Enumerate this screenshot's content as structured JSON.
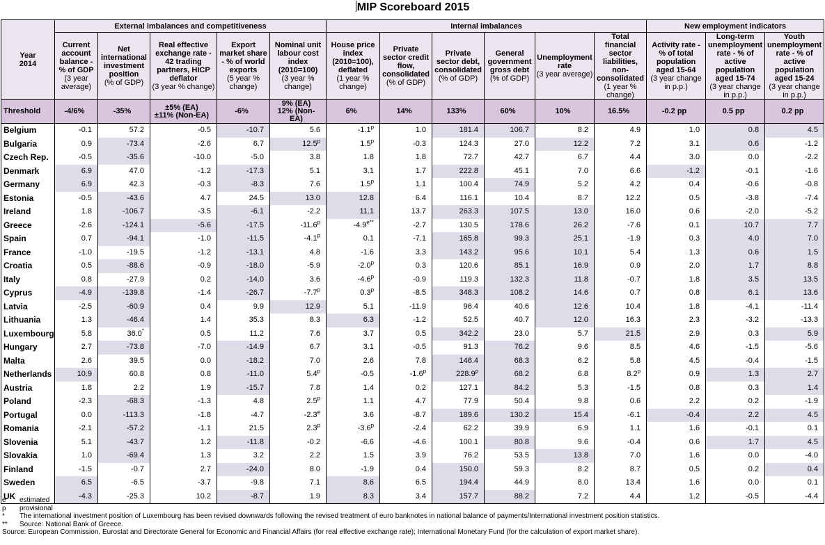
{
  "title": "MIP Scoreboard 2015",
  "year_label": "Year 2014",
  "groups": [
    "External imbalances and competitiveness",
    "Internal imbalances",
    "New employment indicators"
  ],
  "columns": [
    {
      "bold": "Current account balance - % of GDP",
      "normal": "(3 year average)"
    },
    {
      "bold": "Net international investment position",
      "normal": "(% of GDP)"
    },
    {
      "bold": "Real effective exchange rate - 42 trading partners, HICP deflator",
      "normal": "(3 year % change)"
    },
    {
      "bold": "Export market share - % of world exports",
      "normal": "(5 year % change)"
    },
    {
      "bold": "Nominal unit labour cost index (2010=100)",
      "normal": "(3 year % change)"
    },
    {
      "bold": "House price index (2010=100), deflated",
      "normal": "(1 year % change)"
    },
    {
      "bold": "Private sector credit flow, consolidated",
      "normal": "(% of GDP)"
    },
    {
      "bold": "Private sector debt, consolidated",
      "normal": "(% of GDP)"
    },
    {
      "bold": "General government gross debt",
      "normal": "(% of GDP)"
    },
    {
      "bold": "Unemployment rate",
      "normal": "(3 year average)"
    },
    {
      "bold": "Total financial sector liabilities, non-consolidated",
      "normal": "(1 year % change)"
    },
    {
      "bold": "Activity rate - % of total population aged 15-64",
      "normal": "(3 year change in p.p.)"
    },
    {
      "bold": "Long-term unemployment rate - % of active population aged 15-74",
      "normal": "(3 year change in p.p.)"
    },
    {
      "bold": "Youth unemployment rate - % of active population aged 15-24",
      "normal": "(3 year change in p.p.)"
    }
  ],
  "threshold_label": "Threshold",
  "thresholds": [
    "-4/6%",
    "-35%",
    "±5% (EA)\n±11% (Non-EA)",
    "-6%",
    "9% (EA)\n12% (Non-EA)",
    "6%",
    "14%",
    "133%",
    "60%",
    "10%",
    "16.5%",
    "-0.2 pp",
    "0.5 pp",
    "0.2 pp"
  ],
  "highlight_color": "#dfdbe9",
  "rows": [
    {
      "country": "Belgium",
      "values": [
        "-0.1",
        "57.2",
        "-0.5",
        "-10.7",
        "5.6",
        "-1.1^p",
        "1.0",
        "181.4",
        "106.7",
        "8.2",
        "4.9",
        "1.0",
        "0.8",
        "4.5"
      ],
      "flagged": [
        3,
        7,
        8,
        12,
        13
      ]
    },
    {
      "country": "Bulgaria",
      "values": [
        "0.9",
        "-73.4",
        "-2.6",
        "6.7",
        "12.5^p",
        "1.5^p",
        "-0.3",
        "124.3",
        "27.0",
        "12.2",
        "7.2",
        "3.1",
        "0.6",
        "-1.2"
      ],
      "flagged": [
        1,
        4,
        9,
        12
      ]
    },
    {
      "country": "Czech Rep.",
      "values": [
        "-0.5",
        "-35.6",
        "-10.0",
        "-5.0",
        "3.8",
        "1.8",
        "1.8",
        "72.7",
        "42.7",
        "6.7",
        "4.4",
        "3.0",
        "0.0",
        "-2.2"
      ],
      "flagged": [
        1
      ]
    },
    {
      "country": "Denmark",
      "values": [
        "6.9",
        "47.0",
        "-1.2",
        "-17.3",
        "5.1",
        "3.1",
        "1.7",
        "222.8",
        "45.1",
        "7.0",
        "6.6",
        "-1.2",
        "-0.1",
        "-1.6"
      ],
      "flagged": [
        0,
        3,
        7,
        11
      ]
    },
    {
      "country": "Germany",
      "values": [
        "6.9",
        "42.3",
        "-0.3",
        "-8.3",
        "7.6",
        "1.5^p",
        "1.1",
        "100.4",
        "74.9",
        "5.2",
        "4.2",
        "0.4",
        "-0.6",
        "-0.8"
      ],
      "flagged": [
        0,
        3,
        8
      ]
    },
    {
      "country": "Estonia",
      "values": [
        "-0.5",
        "-43.6",
        "4.7",
        "24.5",
        "13.0",
        "12.8",
        "6.4",
        "116.1",
        "10.4",
        "8.7",
        "12.2",
        "0.5",
        "-3.8",
        "-7.4"
      ],
      "flagged": [
        1,
        4,
        5
      ]
    },
    {
      "country": "Ireland",
      "values": [
        "1.8",
        "-106.7",
        "-3.5",
        "-6.1",
        "-2.2",
        "11.1",
        "13.7",
        "263.3",
        "107.5",
        "13.0",
        "16.0",
        "0.6",
        "-2.0",
        "-5.2"
      ],
      "flagged": [
        1,
        3,
        5,
        7,
        8,
        9
      ]
    },
    {
      "country": "Greece",
      "values": [
        "-2.6",
        "-124.1",
        "-5.6",
        "-17.5",
        "-11.6^p",
        "-4.9^e**",
        "-2.7",
        "130.5",
        "178.6",
        "26.2",
        "-7.6",
        "0.1",
        "10.7",
        "7.7"
      ],
      "flagged": [
        1,
        2,
        3,
        8,
        9,
        12,
        13
      ]
    },
    {
      "country": "Spain",
      "values": [
        "0.7",
        "-94.1",
        "-1.0",
        "-11.5",
        "-4.1^p",
        "0.1",
        "-7.1",
        "165.8",
        "99.3",
        "25.1",
        "-1.9",
        "0.3",
        "4.0",
        "7.0"
      ],
      "flagged": [
        1,
        3,
        7,
        8,
        9,
        12,
        13
      ]
    },
    {
      "country": "France",
      "values": [
        "-1.0",
        "-19.5",
        "-1.2",
        "-13.1",
        "4.8",
        "-1.6",
        "3.3",
        "143.2",
        "95.6",
        "10.1",
        "5.4",
        "1.3",
        "0.6",
        "1.5"
      ],
      "flagged": [
        3,
        7,
        8,
        9,
        12,
        13
      ]
    },
    {
      "country": "Croatia",
      "values": [
        "0.5",
        "-88.6",
        "-0.9",
        "-18.0",
        "-5.9",
        "-2.0^p",
        "0.3",
        "120.6",
        "85.1",
        "16.9",
        "0.9",
        "2.0",
        "1.7",
        "8.8"
      ],
      "flagged": [
        1,
        3,
        8,
        9,
        12,
        13
      ]
    },
    {
      "country": "Italy",
      "values": [
        "0.8",
        "-27.9",
        "0.2",
        "-14.0",
        "3.6",
        "-4.6^p",
        "-0.9",
        "119.3",
        "132.3",
        "11.8",
        "-0.7",
        "1.8",
        "3.5",
        "13.5"
      ],
      "flagged": [
        3,
        8,
        9,
        12,
        13
      ]
    },
    {
      "country": "Cyprus",
      "values": [
        "-4.9",
        "-139.8",
        "-1.4",
        "-26.7",
        "-7.7^p",
        "0.3^p",
        "-8.5",
        "348.3",
        "108.2",
        "14.6",
        "0.7",
        "0.8",
        "6.1",
        "13.6"
      ],
      "flagged": [
        0,
        1,
        3,
        7,
        8,
        9,
        12,
        13
      ]
    },
    {
      "country": "Latvia",
      "values": [
        "-2.5",
        "-60.9",
        "0.4",
        "9.9",
        "12.9",
        "5.1",
        "-11.9",
        "96.4",
        "40.6",
        "12.6",
        "10.4",
        "1.8",
        "-4.1",
        "-11.4"
      ],
      "flagged": [
        1,
        4,
        9
      ]
    },
    {
      "country": "Lithuania",
      "values": [
        "1.3",
        "-46.4",
        "1.4",
        "35.3",
        "8.3",
        "6.3",
        "-1.2",
        "52.5",
        "40.7",
        "12.0",
        "16.3",
        "2.3",
        "-3.2",
        "-13.3"
      ],
      "flagged": [
        1,
        5,
        9
      ]
    },
    {
      "country": "Luxembourg",
      "values": [
        "5.8",
        "36.0^*",
        "0.5",
        "11.2",
        "7.6",
        "3.7",
        "0.5",
        "342.2",
        "23.0",
        "5.7",
        "21.5",
        "2.9",
        "0.3",
        "5.9"
      ],
      "flagged": [
        7,
        10,
        13
      ]
    },
    {
      "country": "Hungary",
      "values": [
        "2.7",
        "-73.8",
        "-7.0",
        "-14.9",
        "6.7",
        "3.1",
        "-0.5",
        "91.3",
        "76.2",
        "9.6",
        "8.5",
        "4.6",
        "-1.5",
        "-5.6"
      ],
      "flagged": [
        1,
        3,
        8
      ]
    },
    {
      "country": "Malta",
      "values": [
        "2.6",
        "39.5",
        "0.0",
        "-18.2",
        "7.0",
        "2.6",
        "7.8",
        "146.4",
        "68.3",
        "6.2",
        "5.8",
        "4.5",
        "-0.4",
        "-1.5"
      ],
      "flagged": [
        3,
        7,
        8
      ]
    },
    {
      "country": "Netherlands",
      "values": [
        "10.9",
        "60.8",
        "0.8",
        "-11.0",
        "5.4^p",
        "-0.5",
        "-1.6^p",
        "228.9^p",
        "68.2",
        "6.8",
        "8.2^p",
        "0.9",
        "1.3",
        "2.7"
      ],
      "flagged": [
        0,
        3,
        7,
        8,
        12,
        13
      ]
    },
    {
      "country": "Austria",
      "values": [
        "1.8",
        "2.2",
        "1.9",
        "-15.7",
        "7.8",
        "1.4",
        "0.2",
        "127.1",
        "84.2",
        "5.3",
        "-1.5",
        "0.8",
        "0.3",
        "1.4"
      ],
      "flagged": [
        3,
        8,
        13
      ]
    },
    {
      "country": "Poland",
      "values": [
        "-2.3",
        "-68.3",
        "-1.3",
        "4.8",
        "2.5^p",
        "1.1",
        "4.7",
        "77.9",
        "50.4",
        "9.8",
        "0.6",
        "2.2",
        "0.2",
        "-1.9"
      ],
      "flagged": [
        1
      ]
    },
    {
      "country": "Portugal",
      "values": [
        "0.0",
        "-113.3",
        "-1.8",
        "-4.7",
        "-2.3^e",
        "3.6",
        "-8.7",
        "189.6",
        "130.2",
        "15.4",
        "-6.1",
        "-0.4",
        "2.2",
        "4.5"
      ],
      "flagged": [
        1,
        7,
        8,
        9,
        11,
        12,
        13
      ]
    },
    {
      "country": "Romania",
      "values": [
        "-2.1",
        "-57.2",
        "-1.1",
        "21.5",
        "2.3^p",
        "-3.6^p",
        "-2.4",
        "62.2",
        "39.9",
        "6.9",
        "1.1",
        "1.6",
        "-0.1",
        "0.1"
      ],
      "flagged": [
        1
      ]
    },
    {
      "country": "Slovenia",
      "values": [
        "5.1",
        "-43.7",
        "1.2",
        "-11.8",
        "-0.2",
        "-6.6",
        "-4.6",
        "100.1",
        "80.8",
        "9.6",
        "-0.4",
        "0.6",
        "1.7",
        "4.5"
      ],
      "flagged": [
        1,
        3,
        8,
        12,
        13
      ]
    },
    {
      "country": "Slovakia",
      "values": [
        "1.0",
        "-69.4",
        "1.3",
        "3.2",
        "2.2",
        "1.5",
        "3.9",
        "76.2",
        "53.5",
        "13.8",
        "7.0",
        "1.6",
        "0.0",
        "-4.0"
      ],
      "flagged": [
        1,
        9
      ]
    },
    {
      "country": "Finland",
      "values": [
        "-1.5",
        "-0.7",
        "2.7",
        "-24.0",
        "8.0",
        "-1.9",
        "0.4",
        "150.0",
        "59.3",
        "8.2",
        "8.7",
        "0.5",
        "0.2",
        "0.4"
      ],
      "flagged": [
        3,
        7,
        13
      ]
    },
    {
      "country": "Sweden",
      "values": [
        "6.5",
        "-6.5",
        "-3.7",
        "-9.8",
        "7.1",
        "8.6",
        "6.5",
        "194.4",
        "44.9",
        "8.0",
        "13.4",
        "1.6",
        "0.0",
        "0.1"
      ],
      "flagged": [
        0,
        5,
        7
      ]
    },
    {
      "country": "UK",
      "values": [
        "-4.3",
        "-25.3",
        "10.2",
        "-8.7",
        "1.9",
        "8.3",
        "3.4",
        "157.7",
        "88.2",
        "7.2",
        "4.4",
        "1.2",
        "-0.5",
        "-4.4"
      ],
      "flagged": [
        0,
        3,
        5,
        7,
        8
      ]
    }
  ],
  "notes": [
    {
      "key": "e",
      "text": "estimated"
    },
    {
      "key": "p",
      "text": "provisional"
    },
    {
      "key": "*",
      "text": "The international investment position of Luxembourg has been revised downwards following the revised treatment of euro banknotes in national balance of payments/International investment position statistics."
    },
    {
      "key": "**",
      "text": "Source: National Bank of Greece."
    },
    {
      "key": "",
      "text": "Source: European Commission, Eurostat and Directorate General for Economic and Financial Affairs (for real effective exchange rate); International Monetary Fund (for the calculation of export market share)."
    }
  ]
}
